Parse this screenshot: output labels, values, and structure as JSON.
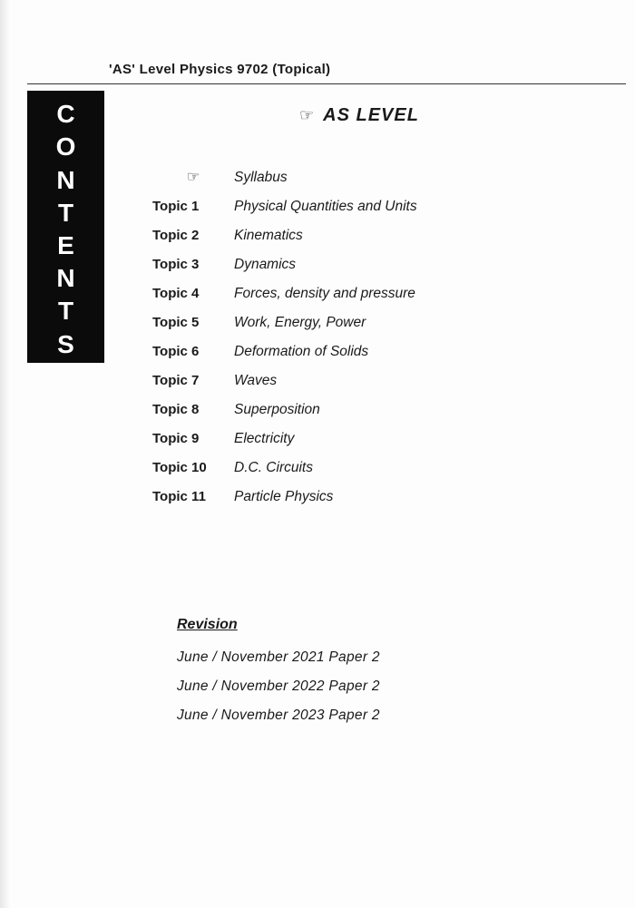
{
  "header": {
    "title": "'AS' Level Physics 9702 (Topical)"
  },
  "main_heading": {
    "pointer_glyph": "☞",
    "text": "AS LEVEL"
  },
  "contents_tab": {
    "letters": [
      "C",
      "O",
      "N",
      "T",
      "E",
      "N",
      "T",
      "S"
    ]
  },
  "toc": [
    {
      "label_is_pointer": true,
      "label": "☞",
      "title": "Syllabus"
    },
    {
      "label_is_pointer": false,
      "label": "Topic 1",
      "title": "Physical Quantities and Units"
    },
    {
      "label_is_pointer": false,
      "label": "Topic 2",
      "title": "Kinematics"
    },
    {
      "label_is_pointer": false,
      "label": "Topic 3",
      "title": "Dynamics"
    },
    {
      "label_is_pointer": false,
      "label": "Topic 4",
      "title": "Forces, density and pressure"
    },
    {
      "label_is_pointer": false,
      "label": "Topic 5",
      "title": "Work, Energy, Power"
    },
    {
      "label_is_pointer": false,
      "label": "Topic 6",
      "title": "Deformation of Solids"
    },
    {
      "label_is_pointer": false,
      "label": "Topic 7",
      "title": "Waves"
    },
    {
      "label_is_pointer": false,
      "label": "Topic 8",
      "title": "Superposition"
    },
    {
      "label_is_pointer": false,
      "label": "Topic 9",
      "title": "Electricity"
    },
    {
      "label_is_pointer": false,
      "label": "Topic 10",
      "title": "D.C. Circuits"
    },
    {
      "label_is_pointer": false,
      "label": "Topic 11",
      "title": "Particle Physics"
    }
  ],
  "revision": {
    "heading": "Revision",
    "items": [
      "June / November 2021 Paper 2",
      "June / November 2022 Paper 2",
      "June / November 2023 Paper 2"
    ]
  },
  "colors": {
    "page_bg": "#fdfdfd",
    "text": "#1a1a1a",
    "tab_bg": "#0b0b0b",
    "tab_text": "#ffffff",
    "rule": "#333333"
  }
}
